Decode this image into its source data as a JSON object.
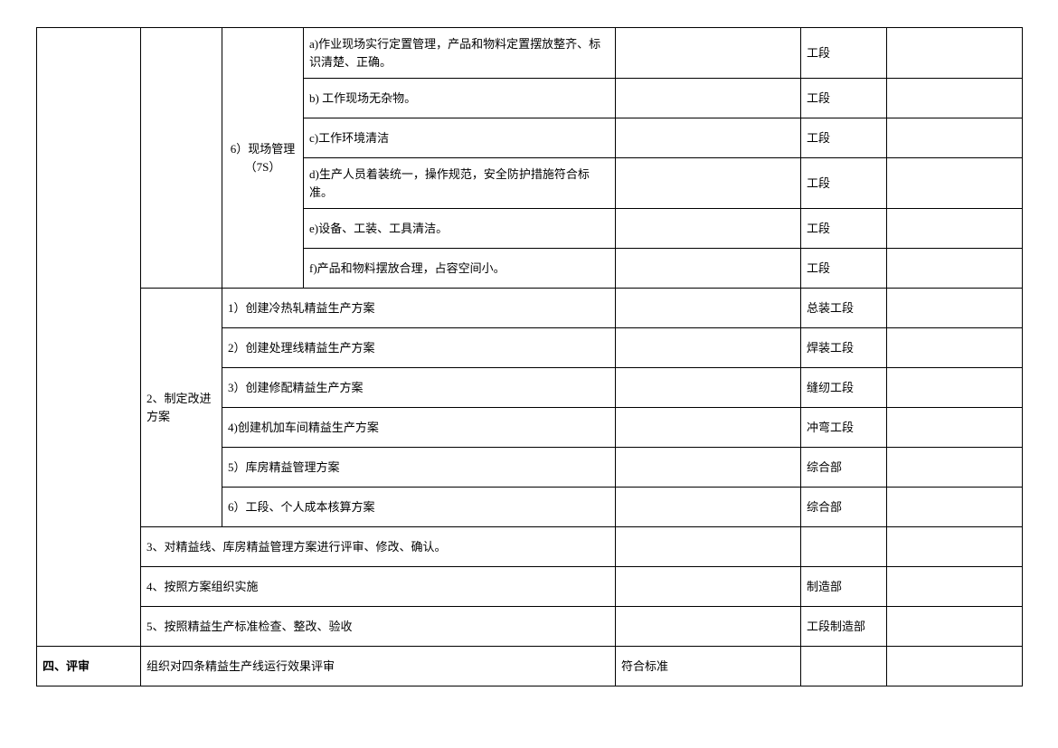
{
  "col_section6_label": "6）现场管理（7S）",
  "section6_items": [
    {
      "desc": "a)作业现场实行定置管理，产品和物料定置摆放整齐、标识清楚、正确。",
      "owner": "工段"
    },
    {
      "desc": "b) 工作现场无杂物。",
      "owner": "工段"
    },
    {
      "desc": "c)工作环境清洁",
      "owner": "工段"
    },
    {
      "desc": "d)生产人员着装统一，操作规范，安全防护措施符合标准。",
      "owner": "工段"
    },
    {
      "desc": "e)设备、工装、工具清洁。",
      "owner": "工段"
    },
    {
      "desc": "f)产品和物料摆放合理，占容空间小。",
      "owner": "工段"
    }
  ],
  "section2_label": "2、制定改进方案",
  "section2_items": [
    {
      "desc": "1）创建冷热轧精益生产方案",
      "owner": "总装工段"
    },
    {
      "desc": "2）创建处理线精益生产方案",
      "owner": "焊装工段"
    },
    {
      "desc": "3）创建修配精益生产方案",
      "owner": "缝纫工段"
    },
    {
      "desc": "4)创建机加车间精益生产方案",
      "owner": "冲弯工段"
    },
    {
      "desc": "5）库房精益管理方案",
      "owner": "综合部"
    },
    {
      "desc": "6）工段、个人成本核算方案",
      "owner": "综合部"
    }
  ],
  "row3": {
    "desc": "3、对精益线、库房精益管理方案进行评审、修改、确认。",
    "owner": ""
  },
  "row4": {
    "desc": "4、按照方案组织实施",
    "owner": "制造部"
  },
  "row5": {
    "desc": "5、按照精益生产标准检查、整改、验收",
    "owner": "工段制造部"
  },
  "review": {
    "label": "四、评审",
    "desc": "组织对四条精益生产线运行效果评审",
    "note": "符合标准",
    "owner": ""
  }
}
